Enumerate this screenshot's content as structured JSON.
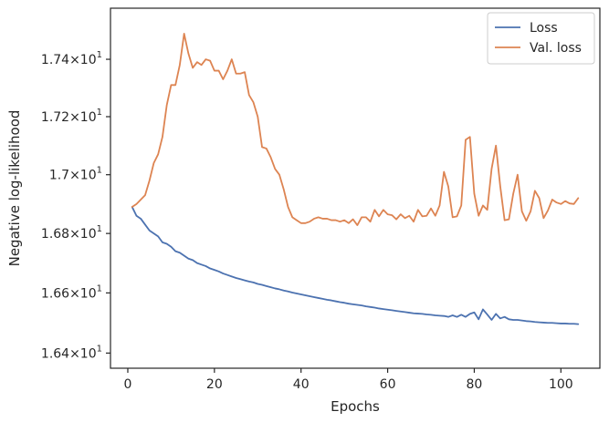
{
  "chart_data": {
    "type": "line",
    "xlabel": "Epochs",
    "ylabel": "Negative log-likelihood",
    "xlim": [
      -4,
      109
    ],
    "ylim": [
      16.35,
      17.58
    ],
    "y_scale": "log",
    "grid": false,
    "legend_position": "top-right",
    "x_ticks": [
      0,
      20,
      40,
      60,
      80,
      100
    ],
    "y_ticks": [
      {
        "value": 16.4,
        "mantissa": "1.64",
        "exponent": "1"
      },
      {
        "value": 16.6,
        "mantissa": "1.66",
        "exponent": "1"
      },
      {
        "value": 16.8,
        "mantissa": "1.68",
        "exponent": "1"
      },
      {
        "value": 17.0,
        "mantissa": "1.7",
        "exponent": "1"
      },
      {
        "value": 17.2,
        "mantissa": "1.72",
        "exponent": "1"
      },
      {
        "value": 17.4,
        "mantissa": "1.74",
        "exponent": "1"
      }
    ],
    "series": [
      {
        "name": "Loss",
        "color": "#4c72b0",
        "x": [
          1,
          2,
          3,
          4,
          5,
          6,
          7,
          8,
          9,
          10,
          11,
          12,
          13,
          14,
          15,
          16,
          17,
          18,
          19,
          20,
          21,
          22,
          23,
          24,
          25,
          26,
          27,
          28,
          29,
          30,
          31,
          32,
          33,
          34,
          35,
          36,
          37,
          38,
          39,
          40,
          41,
          42,
          43,
          44,
          45,
          46,
          47,
          48,
          49,
          50,
          51,
          52,
          53,
          54,
          55,
          56,
          57,
          58,
          59,
          60,
          61,
          62,
          63,
          64,
          65,
          66,
          67,
          68,
          69,
          70,
          71,
          72,
          73,
          74,
          75,
          76,
          77,
          78,
          79,
          80,
          81,
          82,
          83,
          84,
          85,
          86,
          87,
          88,
          89,
          90,
          91,
          92,
          93,
          94,
          95,
          96,
          97,
          98,
          99,
          100,
          101,
          102,
          103,
          104
        ],
        "values": [
          16.89,
          16.86,
          16.85,
          16.83,
          16.81,
          16.8,
          16.79,
          16.77,
          16.765,
          16.755,
          16.74,
          16.735,
          16.725,
          16.715,
          16.71,
          16.7,
          16.695,
          16.69,
          16.682,
          16.677,
          16.672,
          16.665,
          16.66,
          16.655,
          16.65,
          16.646,
          16.642,
          16.638,
          16.635,
          16.63,
          16.627,
          16.623,
          16.619,
          16.615,
          16.612,
          16.608,
          16.605,
          16.601,
          16.598,
          16.595,
          16.592,
          16.589,
          16.586,
          16.583,
          16.58,
          16.577,
          16.575,
          16.572,
          16.569,
          16.567,
          16.564,
          16.562,
          16.56,
          16.558,
          16.555,
          16.553,
          16.551,
          16.548,
          16.546,
          16.544,
          16.542,
          16.54,
          16.538,
          16.536,
          16.534,
          16.532,
          16.531,
          16.53,
          16.528,
          16.527,
          16.525,
          16.524,
          16.523,
          16.52,
          16.525,
          16.52,
          16.527,
          16.52,
          16.53,
          16.535,
          16.512,
          16.545,
          16.528,
          16.51,
          16.53,
          16.515,
          16.52,
          16.512,
          16.51,
          16.51,
          16.508,
          16.506,
          16.505,
          16.503,
          16.502,
          16.501,
          16.5,
          16.5,
          16.499,
          16.498,
          16.498,
          16.497,
          16.497,
          16.496
        ]
      },
      {
        "name": "Val. loss",
        "color": "#dd8452",
        "x": [
          1,
          2,
          3,
          4,
          5,
          6,
          7,
          8,
          9,
          10,
          11,
          12,
          13,
          14,
          15,
          16,
          17,
          18,
          19,
          20,
          21,
          22,
          23,
          24,
          25,
          26,
          27,
          28,
          29,
          30,
          31,
          32,
          33,
          34,
          35,
          36,
          37,
          38,
          39,
          40,
          41,
          42,
          43,
          44,
          45,
          46,
          47,
          48,
          49,
          50,
          51,
          52,
          53,
          54,
          55,
          56,
          57,
          58,
          59,
          60,
          61,
          62,
          63,
          64,
          65,
          66,
          67,
          68,
          69,
          70,
          71,
          72,
          73,
          74,
          75,
          76,
          77,
          78,
          79,
          80,
          81,
          82,
          83,
          84,
          85,
          86,
          87,
          88,
          89,
          90,
          91,
          92,
          93,
          94,
          95,
          96,
          97,
          98,
          99,
          100,
          101,
          102,
          103,
          104
        ],
        "values": [
          16.89,
          16.9,
          16.915,
          16.93,
          16.98,
          17.04,
          17.07,
          17.13,
          17.24,
          17.31,
          17.31,
          17.38,
          17.49,
          17.42,
          17.37,
          17.39,
          17.38,
          17.4,
          17.395,
          17.36,
          17.36,
          17.33,
          17.36,
          17.4,
          17.35,
          17.35,
          17.355,
          17.275,
          17.25,
          17.2,
          17.095,
          17.09,
          17.06,
          17.02,
          17.0,
          16.95,
          16.89,
          16.855,
          16.845,
          16.835,
          16.835,
          16.84,
          16.85,
          16.855,
          16.85,
          16.85,
          16.845,
          16.845,
          16.84,
          16.845,
          16.835,
          16.848,
          16.828,
          16.855,
          16.855,
          16.84,
          16.88,
          16.858,
          16.88,
          16.865,
          16.862,
          16.848,
          16.865,
          16.852,
          16.86,
          16.84,
          16.88,
          16.858,
          16.86,
          16.885,
          16.86,
          16.895,
          17.01,
          16.96,
          16.855,
          16.858,
          16.895,
          17.12,
          17.13,
          16.935,
          16.86,
          16.895,
          16.88,
          17.02,
          17.1,
          16.96,
          16.845,
          16.848,
          16.935,
          17.0,
          16.875,
          16.843,
          16.875,
          16.945,
          16.92,
          16.852,
          16.878,
          16.915,
          16.905,
          16.9,
          16.91,
          16.902,
          16.9,
          16.92
        ]
      }
    ]
  }
}
